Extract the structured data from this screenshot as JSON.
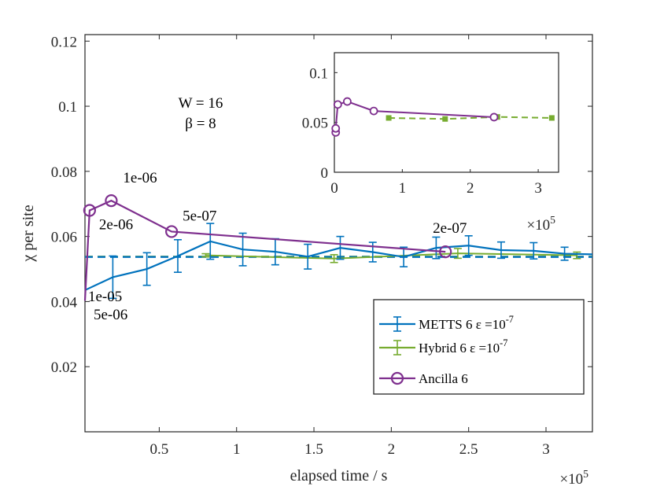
{
  "chart_data": [
    {
      "type": "line",
      "name": "main",
      "xlabel": "elapsed time / s",
      "ylabel": "χ per site",
      "x_multiplier": "×10^5",
      "xlim": [
        0.02,
        3.3
      ],
      "ylim": [
        0,
        0.122
      ],
      "xticks": [
        0.5,
        1,
        1.5,
        2,
        2.5,
        3
      ],
      "xtick_labels": [
        "0.5",
        "1",
        "1.5",
        "2",
        "2.5",
        "3"
      ],
      "yticks": [
        0.02,
        0.04,
        0.06,
        0.08,
        0.1,
        0.12
      ],
      "ytick_labels": [
        "0.02",
        "0.04",
        "0.06",
        "0.08",
        "0.1",
        "0.12"
      ],
      "annotation_params": [
        "W = 16",
        "β = 8"
      ],
      "series": [
        {
          "name": "METTS 6 ε =10^-7",
          "color": "#0072BD",
          "x": [
            0.02,
            0.2,
            0.42,
            0.62,
            0.83,
            1.04,
            1.25,
            1.46,
            1.67,
            1.88,
            2.08,
            2.29,
            2.5,
            2.71,
            2.92,
            3.12,
            3.3
          ],
          "y": [
            0.0435,
            0.0475,
            0.05,
            0.054,
            0.0585,
            0.056,
            0.0553,
            0.0538,
            0.0565,
            0.0552,
            0.0537,
            0.0565,
            0.0572,
            0.0558,
            0.0556,
            0.0547,
            0.0545
          ],
          "err": [
            0,
            0.0065,
            0.005,
            0.005,
            0.0055,
            0.005,
            0.004,
            0.0038,
            0.0035,
            0.003,
            0.003,
            0.0033,
            0.003,
            0.0025,
            0.0025,
            0.002,
            0
          ],
          "mean": 0.0537
        },
        {
          "name": "Hybrid 6 ε =10^-7",
          "color": "#77AC30",
          "x": [
            0.8,
            1.63,
            2.43,
            3.2
          ],
          "y": [
            0.0542,
            0.0532,
            0.0548,
            0.0542
          ],
          "err": [
            0.0005,
            0.0012,
            0.0015,
            0.001
          ],
          "mean": 0.0538
        },
        {
          "name": "Ancilla 6",
          "color": "#7E2F8E",
          "x": [
            0.02,
            0.05,
            0.19,
            0.58,
            2.35
          ],
          "y": [
            0.0403,
            0.068,
            0.071,
            0.0615,
            0.0553
          ],
          "labels": [
            "5e-06",
            "2e-06",
            "1e-06",
            "5e-07",
            "2e-07"
          ],
          "extra_label": "1e-05"
        }
      ],
      "legend": [
        "METTS 6 ε =10^-7",
        "Hybrid 6 ε =10^-7",
        "Ancilla 6"
      ]
    },
    {
      "type": "line",
      "name": "inset",
      "x_multiplier": "×10^5",
      "xlim": [
        0,
        3.3
      ],
      "ylim": [
        0,
        0.12
      ],
      "xticks": [
        0,
        1,
        2,
        3
      ],
      "xtick_labels": [
        "0",
        "1",
        "2",
        "3"
      ],
      "yticks": [
        0,
        0.05,
        0.1
      ],
      "ytick_labels": [
        "0",
        "0.05",
        "0.1"
      ],
      "series": [
        {
          "name": "Ancilla",
          "color": "#7E2F8E",
          "x": [
            0.02,
            0.02,
            0.05,
            0.19,
            0.58,
            2.35
          ],
          "y": [
            0.04,
            0.044,
            0.068,
            0.071,
            0.0615,
            0.0553
          ]
        },
        {
          "name": "Hybrid",
          "color": "#77AC30",
          "x": [
            0.8,
            1.63,
            2.4,
            3.2
          ],
          "y": [
            0.0545,
            0.0535,
            0.0555,
            0.0545
          ]
        }
      ]
    }
  ]
}
